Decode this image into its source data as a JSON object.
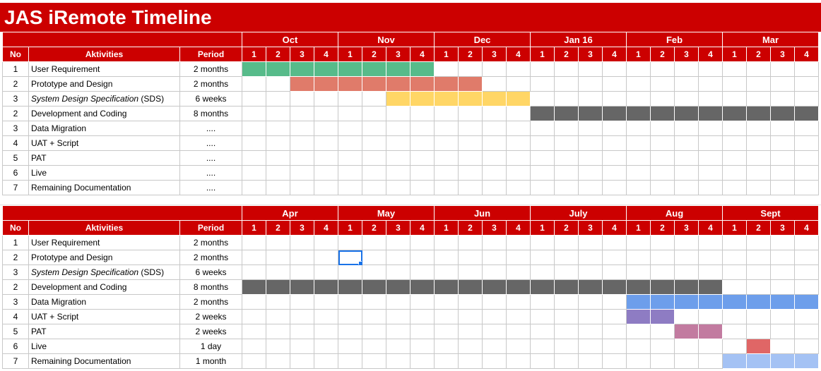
{
  "title": "JAS iRemote Timeline",
  "colors": {
    "header_bg": "#cc0000",
    "green": "#57bb8a",
    "salmon": "#e07b6a",
    "yellow": "#ffd666",
    "gray": "#666666",
    "blue": "#6d9eeb",
    "purple": "#8e7cc3",
    "mauve": "#c27ba0",
    "red": "#e06666",
    "lightblue": "#a4c2f4"
  },
  "headers": {
    "no": "No",
    "activities": "Aktivities",
    "period": "Period"
  },
  "week_labels": [
    "1",
    "2",
    "3",
    "4"
  ],
  "sections": [
    {
      "months": [
        "Oct",
        "Nov",
        "Dec",
        "Jan 16",
        "Feb",
        "Mar"
      ],
      "rows": [
        {
          "no": "1",
          "activity": "User Requirement",
          "italic": "",
          "period": "2 months",
          "start": 0,
          "length": 8,
          "color": "green"
        },
        {
          "no": "2",
          "activity": "Prototype and Design",
          "italic": "",
          "period": "2 months",
          "start": 2,
          "length": 8,
          "color": "salmon"
        },
        {
          "no": "3",
          "activity": " (SDS)",
          "italic": "System Design Specification",
          "period": "6 weeks",
          "start": 6,
          "length": 6,
          "color": "yellow"
        },
        {
          "no": "2",
          "activity": "Development and Coding",
          "italic": "",
          "period": "8 months",
          "start": 12,
          "length": 12,
          "color": "gray"
        },
        {
          "no": "3",
          "activity": "Data Migration",
          "italic": "",
          "period": "....",
          "start": -1,
          "length": 0,
          "color": ""
        },
        {
          "no": "4",
          "activity": "UAT + Script",
          "italic": "",
          "period": "....",
          "start": -1,
          "length": 0,
          "color": ""
        },
        {
          "no": "5",
          "activity": "PAT",
          "italic": "",
          "period": "....",
          "start": -1,
          "length": 0,
          "color": ""
        },
        {
          "no": "6",
          "activity": "Live",
          "italic": "",
          "period": "....",
          "start": -1,
          "length": 0,
          "color": ""
        },
        {
          "no": "7",
          "activity": "Remaining Documentation",
          "italic": "",
          "period": "....",
          "start": -1,
          "length": 0,
          "color": ""
        }
      ]
    },
    {
      "months": [
        "Apr",
        "May",
        "Jun",
        "July",
        "Aug",
        "Sept"
      ],
      "rows": [
        {
          "no": "1",
          "activity": "User Requirement",
          "italic": "",
          "period": "2 months",
          "start": -1,
          "length": 0,
          "color": ""
        },
        {
          "no": "2",
          "activity": "Prototype and Design",
          "italic": "",
          "period": "2 months",
          "start": -1,
          "length": 0,
          "color": ""
        },
        {
          "no": "3",
          "activity": " (SDS)",
          "italic": "System Design Specification",
          "period": "6 weeks",
          "start": -1,
          "length": 0,
          "color": ""
        },
        {
          "no": "2",
          "activity": "Development and Coding",
          "italic": "",
          "period": "8 months",
          "start": 0,
          "length": 20,
          "color": "gray"
        },
        {
          "no": "3",
          "activity": "Data Migration",
          "italic": "",
          "period": "2 months",
          "start": 16,
          "length": 8,
          "color": "blue"
        },
        {
          "no": "4",
          "activity": "UAT + Script",
          "italic": "",
          "period": "2 weeks",
          "start": 16,
          "length": 2,
          "color": "purple"
        },
        {
          "no": "5",
          "activity": "PAT",
          "italic": "",
          "period": "2 weeks",
          "start": 18,
          "length": 2,
          "color": "mauve"
        },
        {
          "no": "6",
          "activity": "Live",
          "italic": "",
          "period": "1 day",
          "start": 21,
          "length": 1,
          "color": "red"
        },
        {
          "no": "7",
          "activity": "Remaining Documentation",
          "italic": "",
          "period": "1 month",
          "start": 20,
          "length": 4,
          "color": "lightblue"
        }
      ]
    }
  ],
  "selected_cell": {
    "section": 1,
    "row": 1,
    "week": 4
  }
}
